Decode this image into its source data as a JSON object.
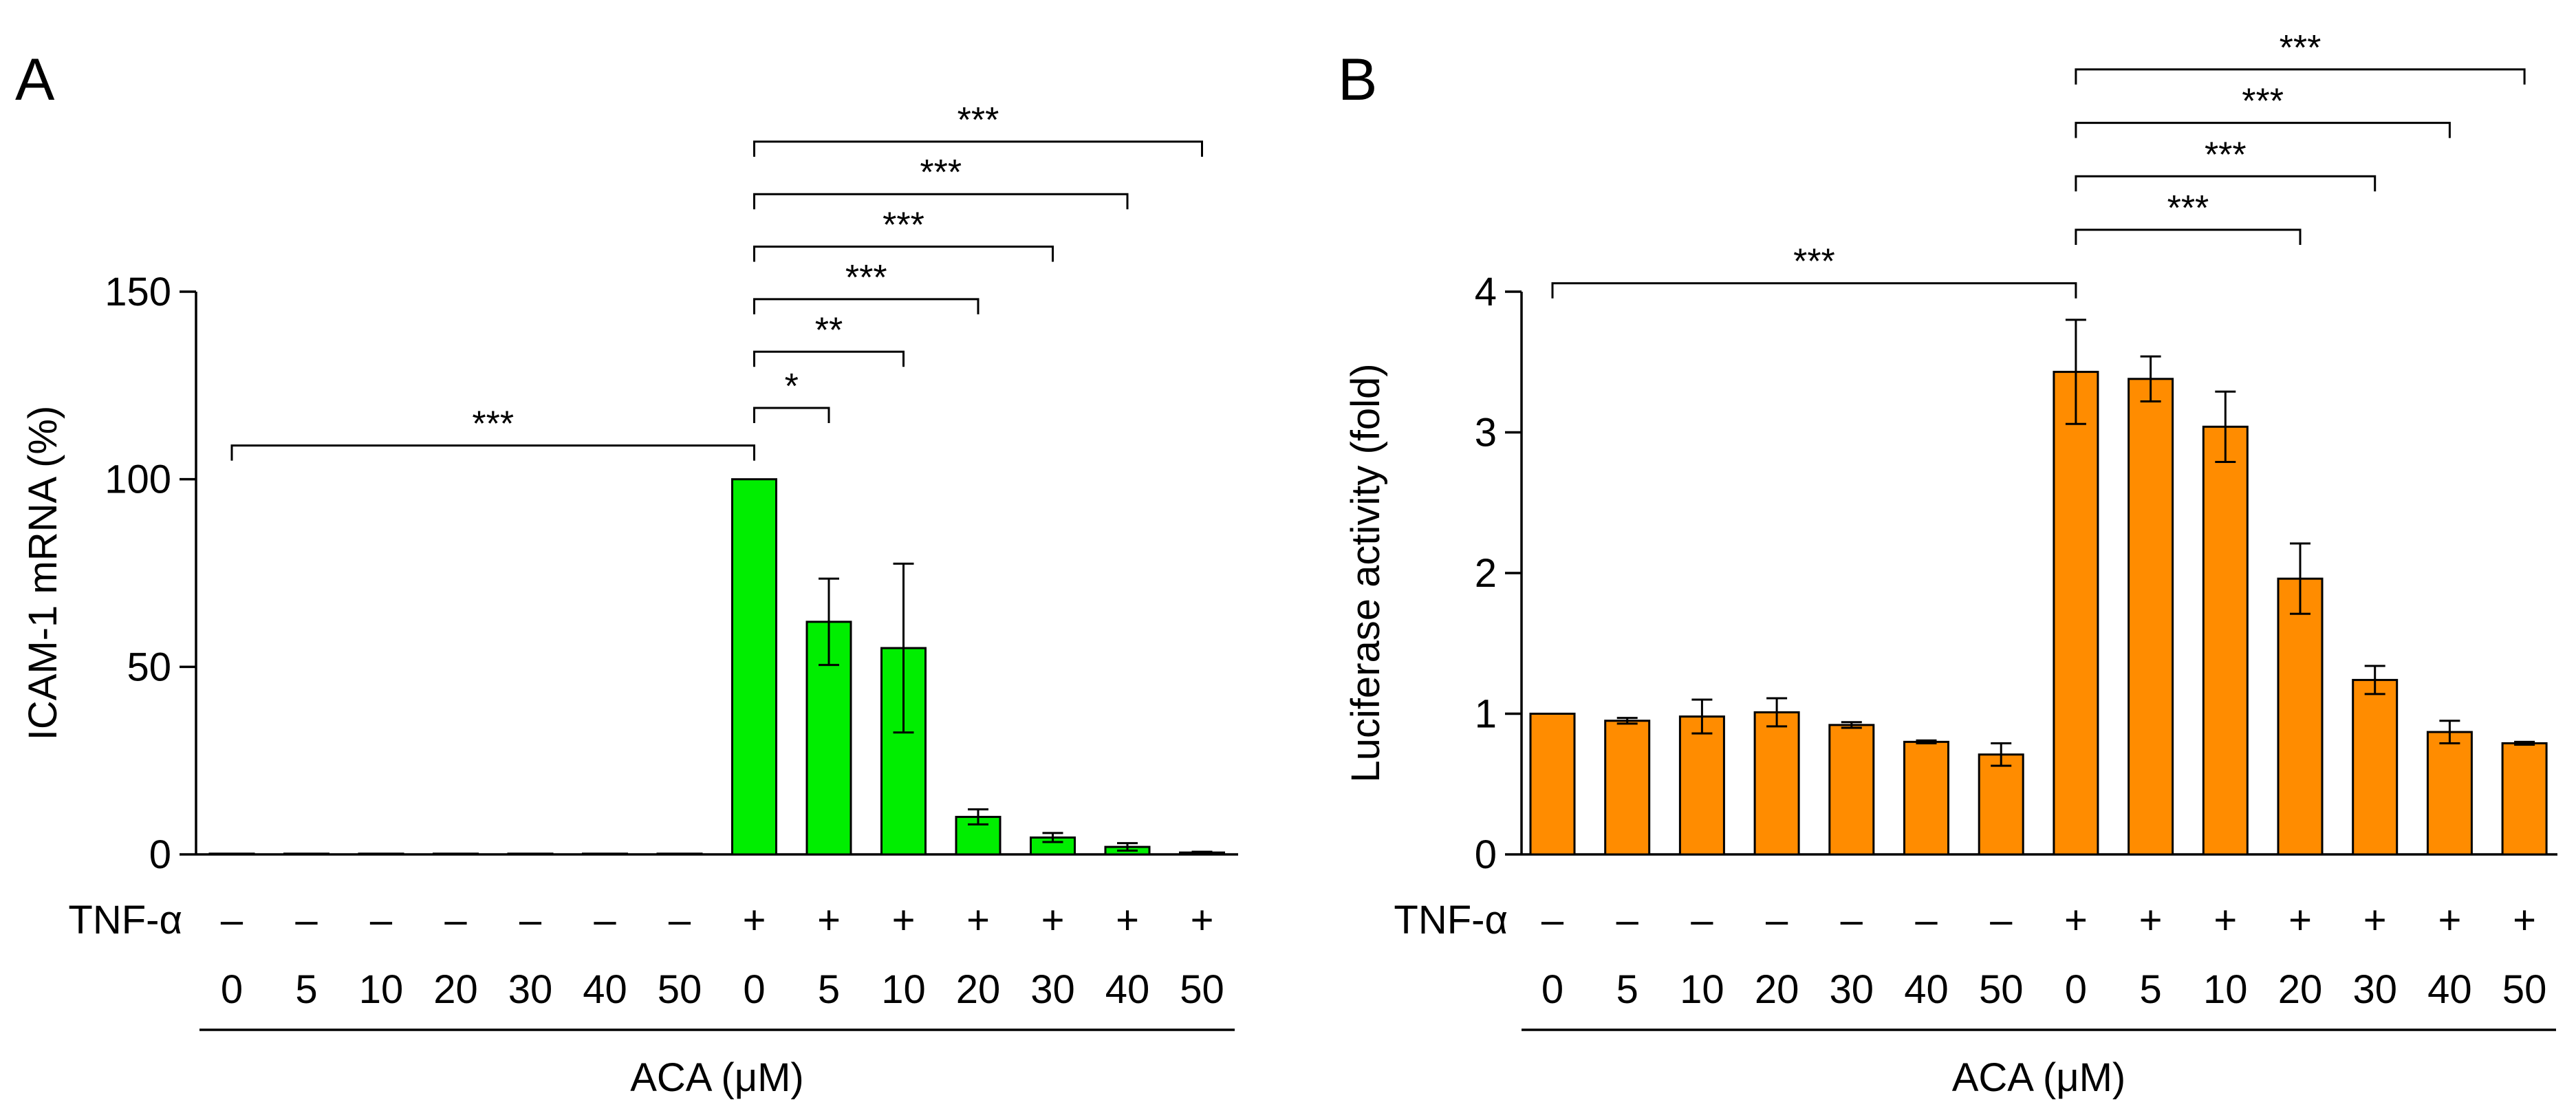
{
  "chart_data": [
    {
      "panel": "A",
      "type": "bar",
      "ylabel": "ICAM-1 mRNA (%)",
      "ylim": [
        0,
        150
      ],
      "yticks": [
        0,
        50,
        100,
        150
      ],
      "bar_color": "#00ee00",
      "row_label": "TNF-α",
      "tnf": [
        "–",
        "–",
        "–",
        "–",
        "–",
        "–",
        "–",
        "+",
        "+",
        "+",
        "+",
        "+",
        "+",
        "+"
      ],
      "categories": [
        "0",
        "5",
        "10",
        "20",
        "30",
        "40",
        "50",
        "0",
        "5",
        "10",
        "20",
        "30",
        "40",
        "50"
      ],
      "xlabel": "ACA (μM)",
      "values": [
        0.2,
        0.2,
        0.2,
        0.2,
        0.2,
        0.2,
        0.2,
        100,
        62,
        55,
        10,
        4.5,
        2,
        0.5
      ],
      "errors": [
        0,
        0,
        0,
        0,
        0,
        0,
        0,
        0,
        11.5,
        22.5,
        2,
        1.2,
        1,
        0.2
      ],
      "brackets": [
        {
          "from": 0,
          "to": 7,
          "label": "***",
          "y": 109
        },
        {
          "from": 7,
          "to": 8,
          "label": "*",
          "y": 119
        },
        {
          "from": 7,
          "to": 9,
          "label": "**",
          "y": 134
        },
        {
          "from": 7,
          "to": 10,
          "label": "***",
          "y": 148
        },
        {
          "from": 7,
          "to": 11,
          "label": "***",
          "y": 162
        },
        {
          "from": 7,
          "to": 12,
          "label": "***",
          "y": 176
        },
        {
          "from": 7,
          "to": 13,
          "label": "***",
          "y": 190
        }
      ]
    },
    {
      "panel": "B",
      "type": "bar",
      "ylabel": "Luciferase activity (fold)",
      "ylim": [
        0,
        4
      ],
      "yticks": [
        0,
        1,
        2,
        3,
        4
      ],
      "bar_color": "#ff8c00",
      "row_label": "TNF-α",
      "tnf": [
        "–",
        "–",
        "–",
        "–",
        "–",
        "–",
        "–",
        "+",
        "+",
        "+",
        "+",
        "+",
        "+",
        "+"
      ],
      "categories": [
        "0",
        "5",
        "10",
        "20",
        "30",
        "40",
        "50",
        "0",
        "5",
        "10",
        "20",
        "30",
        "40",
        "50"
      ],
      "xlabel": "ACA (μM)",
      "values": [
        1,
        0.95,
        0.98,
        1.01,
        0.92,
        0.8,
        0.71,
        3.43,
        3.38,
        3.04,
        1.96,
        1.24,
        0.87,
        0.79
      ],
      "errors": [
        0,
        0.02,
        0.12,
        0.1,
        0.02,
        0.01,
        0.08,
        0.37,
        0.16,
        0.25,
        0.25,
        0.1,
        0.08,
        0.01
      ],
      "brackets": [
        {
          "from": 0,
          "to": 7,
          "label": "***",
          "y": 4.06
        },
        {
          "from": 7,
          "to": 10,
          "label": "***",
          "y": 4.44
        },
        {
          "from": 7,
          "to": 11,
          "label": "***",
          "y": 4.82
        },
        {
          "from": 7,
          "to": 12,
          "label": "***",
          "y": 5.2
        },
        {
          "from": 7,
          "to": 13,
          "label": "***",
          "y": 5.58
        }
      ]
    }
  ]
}
